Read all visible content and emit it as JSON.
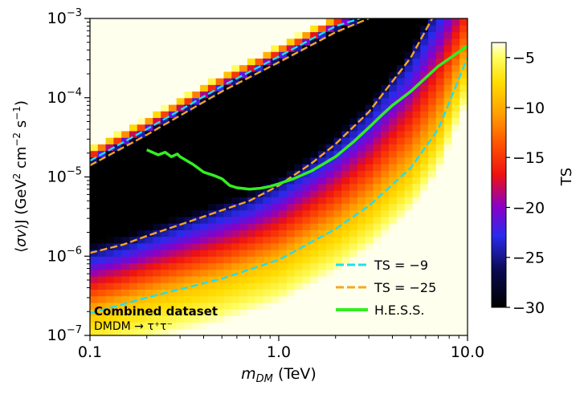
{
  "chart_data": {
    "type": "heatmap",
    "xlabel": "m_DM (TeV)",
    "ylabel": "⟨σv⟩J (GeV² cm⁻² s⁻¹)",
    "xscale": "log",
    "yscale": "log",
    "xlim": [
      0.1,
      10.0
    ],
    "ylim": [
      1e-07,
      0.001
    ],
    "x_ticks": [
      {
        "value": 0.1,
        "label": "0.1"
      },
      {
        "value": 1.0,
        "label": "1.0"
      },
      {
        "value": 10.0,
        "label": "10.0"
      }
    ],
    "y_ticks": [
      {
        "value": 1e-07,
        "label": "10−7"
      },
      {
        "value": 1e-06,
        "label": "10−6"
      },
      {
        "value": 1e-05,
        "label": "10−5"
      },
      {
        "value": 0.0001,
        "label": "10−4"
      },
      {
        "value": 0.001,
        "label": "10−3"
      }
    ],
    "colorbar": {
      "label": "TS",
      "range": [
        -30,
        -3.5
      ],
      "ticks": [
        -5,
        -10,
        -15,
        -20,
        -25,
        -30
      ],
      "tick_labels": [
        "−5",
        "−10",
        "−15",
        "−20",
        "−25",
        "−30"
      ],
      "colormap": "gnuplot2-like (black → blue → red → orange → yellow → white)"
    },
    "annotation": {
      "line1": "Combined dataset",
      "line2": "DMDM → τ⁺τ⁻"
    },
    "legend": {
      "placement": "lower-right",
      "entries": [
        {
          "label": "TS = −9",
          "color": "#22ddee",
          "dash": true
        },
        {
          "label": "TS = −25",
          "color": "#f5a623",
          "dash": true
        },
        {
          "label": "H.E.S.S.",
          "color": "#33ee22",
          "dash": false
        }
      ]
    },
    "series": [
      {
        "name": "TS = −9 (upper)",
        "color": "#22ddee",
        "dashed": true,
        "x": [
          0.1,
          0.2,
          0.5,
          1.0,
          2.0,
          2.7
        ],
        "y": [
          1.6e-05,
          4e-05,
          0.00014,
          0.00033,
          0.0008,
          0.001
        ]
      },
      {
        "name": "TS = −25 (upper)",
        "color": "#f5a623",
        "dashed": true,
        "x": [
          0.1,
          0.2,
          0.5,
          1.0,
          2.0,
          3.0
        ],
        "y": [
          1.4e-05,
          3.4e-05,
          0.00012,
          0.00028,
          0.00067,
          0.001
        ]
      },
      {
        "name": "TS = −25 (lower)",
        "color": "#f5a623",
        "dashed": true,
        "x": [
          0.1,
          0.15,
          0.2,
          0.3,
          0.5,
          0.7,
          1.0,
          1.5,
          2.0,
          3.0,
          5.0,
          6.5
        ],
        "y": [
          1.1e-06,
          1.4e-06,
          1.8e-06,
          2.5e-06,
          3.8e-06,
          5e-06,
          7.8e-06,
          1.5e-05,
          2.6e-05,
          6.6e-05,
          0.00032,
          0.001
        ]
      },
      {
        "name": "TS = −9 (lower)",
        "color": "#22ddee",
        "dashed": true,
        "x": [
          0.1,
          0.2,
          0.5,
          1.0,
          2.0,
          3.0,
          5.0,
          7.0,
          10.0
        ],
        "y": [
          1.9e-07,
          3e-07,
          5.2e-07,
          9e-07,
          2.2e-06,
          4.3e-06,
          1.3e-05,
          4e-05,
          0.00032
        ]
      },
      {
        "name": "H.E.S.S.",
        "color": "#33ee22",
        "dashed": false,
        "x": [
          0.2,
          0.23,
          0.25,
          0.27,
          0.29,
          0.3,
          0.35,
          0.4,
          0.45,
          0.5,
          0.55,
          0.6,
          0.7,
          0.8,
          0.9,
          1.0,
          1.2,
          1.5,
          2.0,
          2.5,
          3.0,
          3.5,
          4.0,
          5.0,
          7.0,
          10.0
        ],
        "y": [
          2.2e-05,
          1.9e-05,
          2.05e-05,
          1.8e-05,
          1.95e-05,
          1.8e-05,
          1.45e-05,
          1.15e-05,
          1.05e-05,
          9.5e-06,
          7.8e-06,
          7.3e-06,
          7e-06,
          7.2e-06,
          7.6e-06,
          8.2e-06,
          9.5e-06,
          1.2e-05,
          1.8e-05,
          2.8e-05,
          4.2e-05,
          6e-05,
          8e-05,
          0.00012,
          0.00025,
          0.00045
        ]
      }
    ]
  }
}
